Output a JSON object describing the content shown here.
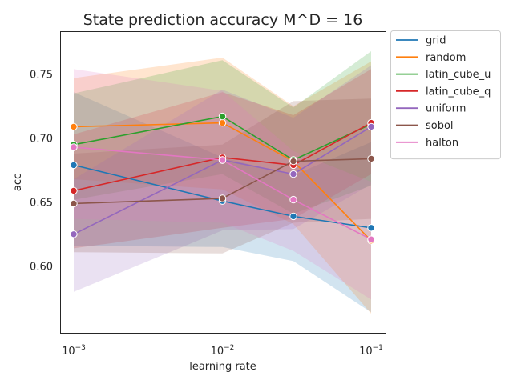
{
  "chart_data": {
    "type": "line",
    "title": "State prediction accuracy M^D = 16",
    "xlabel": "learning rate",
    "ylabel": "acc",
    "x_scale": "log",
    "x": [
      0.001,
      0.01,
      0.03,
      0.1
    ],
    "x_tick_labels": [
      {
        "base": "10",
        "exp": "−3"
      },
      {
        "base": "10",
        "exp": "−2"
      },
      {
        "base": "10",
        "exp": "−1"
      }
    ],
    "x_tick_values": [
      0.001,
      0.01,
      0.1
    ],
    "xlim": [
      0.00082,
      0.125
    ],
    "ylim": [
      0.548,
      0.783
    ],
    "y_ticks": [
      0.6,
      0.65,
      0.7,
      0.75
    ],
    "y_tick_labels": [
      "0.60",
      "0.65",
      "0.70",
      "0.75"
    ],
    "grid": false,
    "legend_placement": "outside-top-right",
    "series": [
      {
        "name": "grid",
        "color": "#1f77b4",
        "values": [
          0.679,
          0.651,
          0.639,
          0.63
        ],
        "lower": [
          0.616,
          0.615,
          0.604,
          0.564
        ],
        "upper": [
          0.736,
          0.685,
          0.671,
          0.697
        ]
      },
      {
        "name": "random",
        "color": "#ff7f0e",
        "values": [
          0.709,
          0.712,
          0.682,
          0.62
        ],
        "lower": [
          0.668,
          0.66,
          0.633,
          0.563
        ],
        "upper": [
          0.747,
          0.763,
          0.725,
          0.76
        ]
      },
      {
        "name": "latin_cube_u",
        "color": "#2ca02c",
        "values": [
          0.695,
          0.717,
          0.683,
          0.711
        ],
        "lower": [
          0.652,
          0.672,
          0.641,
          0.663
        ],
        "upper": [
          0.735,
          0.761,
          0.724,
          0.768
        ]
      },
      {
        "name": "latin_cube_q",
        "color": "#d62728",
        "values": [
          0.659,
          0.685,
          0.679,
          0.712
        ],
        "lower": [
          0.614,
          0.63,
          0.637,
          0.672
        ],
        "upper": [
          0.703,
          0.736,
          0.718,
          0.754
        ]
      },
      {
        "name": "uniform",
        "color": "#9467bd",
        "values": [
          0.625,
          0.683,
          0.672,
          0.709
        ],
        "lower": [
          0.58,
          0.628,
          0.629,
          0.664
        ],
        "upper": [
          0.668,
          0.738,
          0.716,
          0.757
        ]
      },
      {
        "name": "sobol",
        "color": "#8c564b",
        "values": [
          0.649,
          0.653,
          0.682,
          0.684
        ],
        "lower": [
          0.611,
          0.61,
          0.634,
          0.637
        ],
        "upper": [
          0.688,
          0.695,
          0.729,
          0.731
        ]
      },
      {
        "name": "halton",
        "color": "#e377c2",
        "values": [
          0.693,
          0.683,
          0.652,
          0.621
        ],
        "lower": [
          0.637,
          0.634,
          0.612,
          0.574
        ],
        "upper": [
          0.754,
          0.737,
          0.69,
          0.666
        ]
      }
    ]
  }
}
